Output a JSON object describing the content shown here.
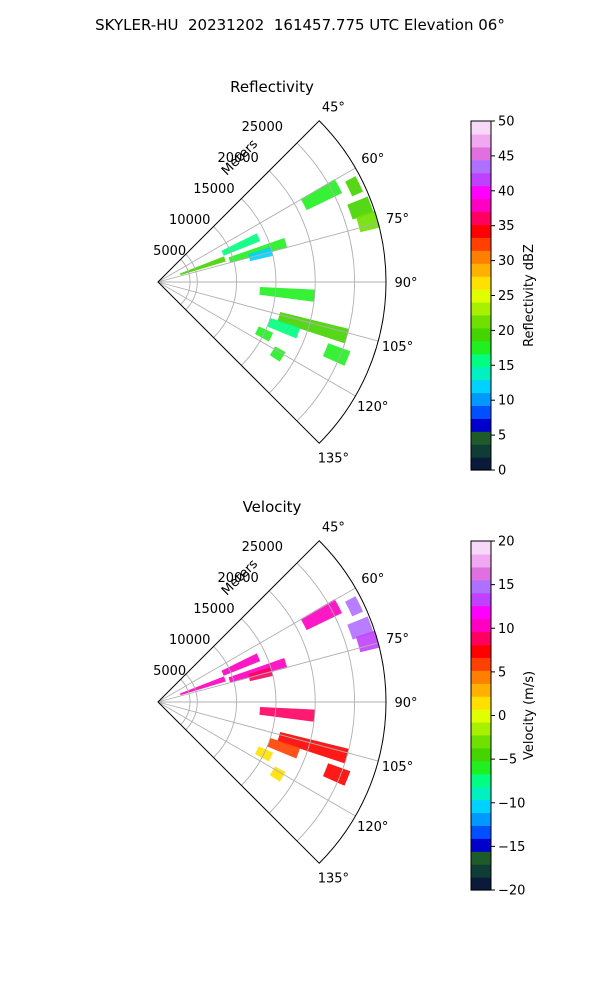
{
  "figure": {
    "title": "SKYLER-HU  20231202  161457.775 UTC Elevation 06°"
  },
  "chart_data": [
    {
      "type": "heatmap",
      "subtype": "radar-sector-ppi",
      "title": "Reflectivity",
      "radial_label": "Meters",
      "angle_ticks": [
        "45°",
        "60°",
        "75°",
        "90°",
        "105°",
        "120°",
        "135°"
      ],
      "angle_range_deg": [
        45,
        135
      ],
      "range_ticks": [
        "5000",
        "10000",
        "15000",
        "20000",
        "25000"
      ],
      "range_max_m": 29000,
      "grid": true,
      "colorbar": {
        "label": "Reflectivity dBZ",
        "min": 0,
        "max": 50,
        "ticks": [
          "0",
          "5",
          "10",
          "15",
          "20",
          "25",
          "30",
          "35",
          "40",
          "45",
          "50"
        ],
        "colors": [
          "#0a1a3a",
          "#0f3d35",
          "#1f5a2a",
          "#0000cd",
          "#0050ff",
          "#0099ff",
          "#00d2ff",
          "#00f0c0",
          "#00ff80",
          "#20f020",
          "#44d400",
          "#6fe000",
          "#a8f000",
          "#e0ff00",
          "#ffe000",
          "#ffb000",
          "#ff8000",
          "#ff4000",
          "#ff0000",
          "#ff0060",
          "#ff00c0",
          "#ff00ff",
          "#c040ff",
          "#b070ff",
          "#e070e0",
          "#f0a8f0",
          "#f8d8f8"
        ]
      },
      "echoes": [
        {
          "az": 62,
          "r0": 21000,
          "r1": 26000,
          "dbz": 18
        },
        {
          "az": 64,
          "r0": 27000,
          "r1": 28500,
          "dbz": 20
        },
        {
          "az": 70,
          "r0": 26000,
          "r1": 28800,
          "dbz": 19
        },
        {
          "az": 74,
          "r0": 26500,
          "r1": 29000,
          "dbz": 21
        },
        {
          "az": 66,
          "r0": 9000,
          "r1": 14000,
          "dbz": 16
        },
        {
          "az": 71,
          "r0": 3000,
          "r1": 9000,
          "dbz": 20
        },
        {
          "az": 73,
          "r0": 9500,
          "r1": 17000,
          "dbz": 18
        },
        {
          "az": 75,
          "r0": 12000,
          "r1": 15000,
          "dbz": 12
        },
        {
          "az": 95,
          "r0": 13000,
          "r1": 20000,
          "dbz": 17
        },
        {
          "az": 106,
          "r0": 16000,
          "r1": 25000,
          "dbz": 19
        },
        {
          "az": 110,
          "r0": 15000,
          "r1": 19000,
          "dbz": 16
        },
        {
          "az": 116,
          "r0": 14000,
          "r1": 16000,
          "dbz": 17
        },
        {
          "az": 121,
          "r0": 17000,
          "r1": 18500,
          "dbz": 18
        },
        {
          "az": 112,
          "r0": 23000,
          "r1": 26000,
          "dbz": 17
        }
      ]
    },
    {
      "type": "heatmap",
      "subtype": "radar-sector-ppi",
      "title": "Velocity",
      "radial_label": "Meters",
      "angle_ticks": [
        "45°",
        "60°",
        "75°",
        "90°",
        "105°",
        "120°",
        "135°"
      ],
      "angle_range_deg": [
        45,
        135
      ],
      "range_ticks": [
        "5000",
        "10000",
        "15000",
        "20000",
        "25000"
      ],
      "range_max_m": 29000,
      "grid": true,
      "colorbar": {
        "label": "Velocity (m/s)",
        "min": -20,
        "max": 20,
        "ticks": [
          "−20",
          "−15",
          "−10",
          "−5",
          "0",
          "5",
          "10",
          "15",
          "20"
        ],
        "colors": [
          "#0a1a3a",
          "#0f3d35",
          "#1f5a2a",
          "#0000cd",
          "#0050ff",
          "#0099ff",
          "#00d2ff",
          "#00f0c0",
          "#00ff80",
          "#20f020",
          "#44d400",
          "#6fe000",
          "#a8f000",
          "#e0ff00",
          "#ffe000",
          "#ffb000",
          "#ff8000",
          "#ff4000",
          "#ff0000",
          "#ff0060",
          "#ff00c0",
          "#ff00ff",
          "#c040ff",
          "#b070ff",
          "#e070e0",
          "#f0a8f0",
          "#f8d8f8"
        ]
      },
      "echoes": [
        {
          "az": 62,
          "r0": 21000,
          "r1": 26000,
          "vel": 10
        },
        {
          "az": 64,
          "r0": 27000,
          "r1": 28500,
          "vel": 15
        },
        {
          "az": 70,
          "r0": 26000,
          "r1": 28800,
          "vel": 15
        },
        {
          "az": 74,
          "r0": 26500,
          "r1": 29000,
          "vel": 14
        },
        {
          "az": 66,
          "r0": 9000,
          "r1": 14000,
          "vel": 10
        },
        {
          "az": 71,
          "r0": 3000,
          "r1": 9000,
          "vel": 11
        },
        {
          "az": 73,
          "r0": 9500,
          "r1": 17000,
          "vel": 10
        },
        {
          "az": 75,
          "r0": 12000,
          "r1": 15000,
          "vel": 9
        },
        {
          "az": 95,
          "r0": 13000,
          "r1": 20000,
          "vel": 9
        },
        {
          "az": 106,
          "r0": 16000,
          "r1": 25000,
          "vel": 8
        },
        {
          "az": 110,
          "r0": 15000,
          "r1": 19000,
          "vel": 6
        },
        {
          "az": 116,
          "r0": 14000,
          "r1": 16000,
          "vel": 2
        },
        {
          "az": 121,
          "r0": 17000,
          "r1": 18500,
          "vel": 2
        },
        {
          "az": 112,
          "r0": 23000,
          "r1": 26000,
          "vel": 8
        }
      ]
    }
  ]
}
